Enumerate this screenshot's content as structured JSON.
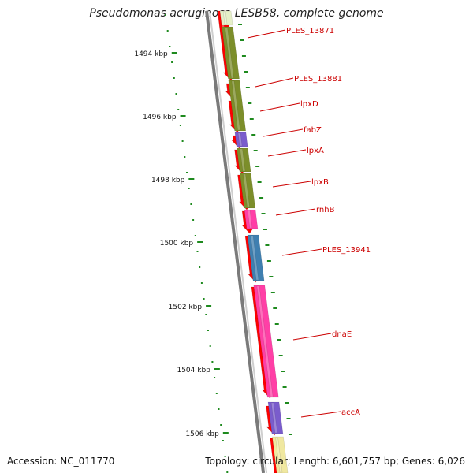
{
  "title": "Pseudomonas aeruginosa LESB58, complete genome",
  "footer": {
    "accession": "Accession: NC_011770",
    "summary": "Topology: circular; Length: 6,601,757 bp; Genes: 6,026"
  },
  "scale": {
    "unit": "kbp",
    "ticks": [
      1494,
      1496,
      1498,
      1500,
      1502,
      1504,
      1506
    ]
  },
  "colors": {
    "backbone": "#7a7a7a",
    "cds": "#ff0000",
    "olive": "#7c8e2a",
    "purple": "#7a5ccc",
    "pink": "#ff3fa6",
    "steel": "#3f7fb0",
    "pale": "#f0e8a0",
    "label": "#cc0000",
    "dots": "#1e8a1e"
  },
  "gene_labels": [
    "PLES_13871",
    "PLES_13881",
    "lpxD",
    "fabZ",
    "lpxA",
    "lpxB",
    "rnhB",
    "PLES_13941",
    "dnaE",
    "accA"
  ]
}
